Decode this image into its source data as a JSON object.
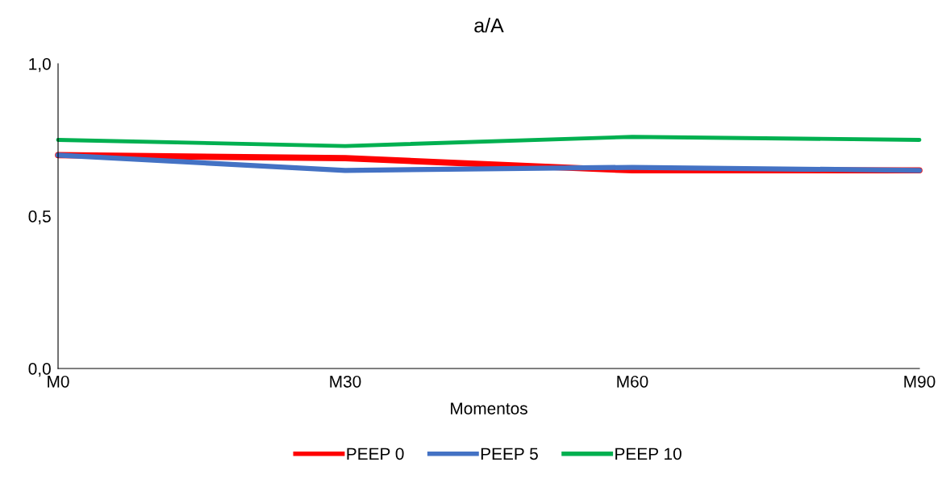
{
  "chart_data": {
    "type": "line",
    "title": "a/A",
    "xlabel": "Momentos",
    "categories": [
      "M0",
      "M30",
      "M60",
      "M90"
    ],
    "series": [
      {
        "name": "PEEP 0",
        "color": "#ff0000",
        "values": [
          0.7,
          0.69,
          0.65,
          0.65
        ]
      },
      {
        "name": "PEEP 5",
        "color": "#4472c4",
        "values": [
          0.7,
          0.65,
          0.66,
          0.65
        ]
      },
      {
        "name": "PEEP 10",
        "color": "#00b050",
        "values": [
          0.75,
          0.73,
          0.76,
          0.75
        ]
      }
    ],
    "ylim": [
      0,
      1
    ],
    "yticks": [
      {
        "value": 0,
        "label": "0,0"
      },
      {
        "value": 0.5,
        "label": "0,5"
      },
      {
        "value": 1,
        "label": "1,0"
      }
    ],
    "grid": false,
    "legend": "bottom",
    "marker": "none",
    "line_style": "solid"
  }
}
